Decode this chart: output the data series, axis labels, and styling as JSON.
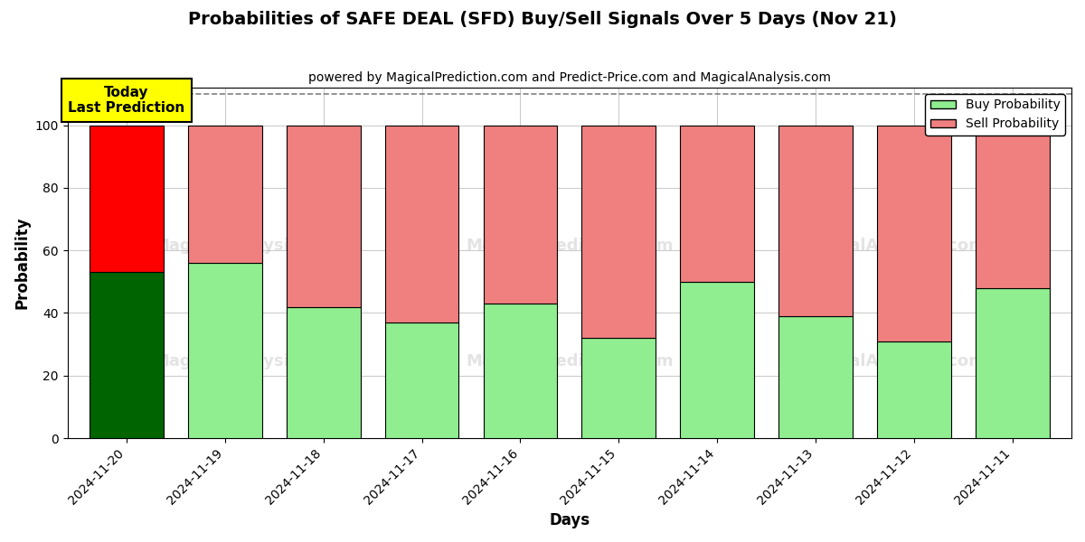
{
  "title": "Probabilities of SAFE DEAL (SFD) Buy/Sell Signals Over 5 Days (Nov 21)",
  "subtitle": "powered by MagicalPrediction.com and Predict-Price.com and MagicalAnalysis.com",
  "xlabel": "Days",
  "ylabel": "Probability",
  "dates": [
    "2024-11-20",
    "2024-11-19",
    "2024-11-18",
    "2024-11-17",
    "2024-11-16",
    "2024-11-15",
    "2024-11-14",
    "2024-11-13",
    "2024-11-12",
    "2024-11-11"
  ],
  "buy_values": [
    53,
    56,
    42,
    37,
    43,
    32,
    50,
    39,
    31,
    48
  ],
  "sell_values": [
    47,
    44,
    58,
    63,
    57,
    68,
    50,
    61,
    69,
    52
  ],
  "buy_colors": [
    "#006400",
    "#90EE90",
    "#90EE90",
    "#90EE90",
    "#90EE90",
    "#90EE90",
    "#90EE90",
    "#90EE90",
    "#90EE90",
    "#90EE90"
  ],
  "sell_colors": [
    "#FF0000",
    "#F08080",
    "#F08080",
    "#F08080",
    "#F08080",
    "#F08080",
    "#F08080",
    "#F08080",
    "#F08080",
    "#F08080"
  ],
  "today_label": "Today\nLast Prediction",
  "legend_buy_color": "#90EE90",
  "legend_sell_color": "#F08080",
  "legend_buy_label": "Buy Probability",
  "legend_sell_label": "Sell Probability",
  "ylim": [
    0,
    112
  ],
  "dashed_line_y": 110,
  "background_color": "#ffffff",
  "bar_width": 0.75
}
